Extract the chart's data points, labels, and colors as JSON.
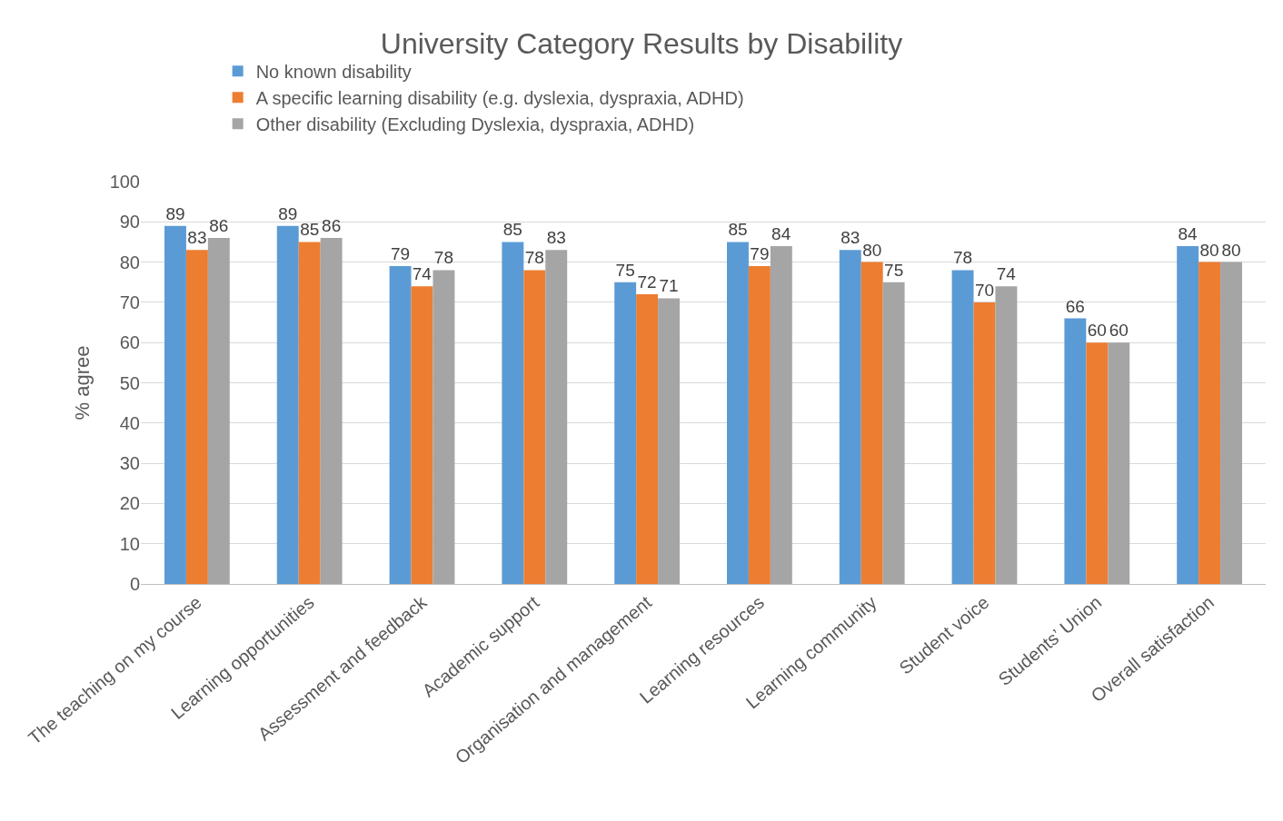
{
  "chart_data": {
    "type": "bar",
    "title": "University Category Results by Disability",
    "ylabel": "% agree",
    "categories": [
      "The teaching on my course",
      "Learning opportunities",
      "Assessment and feedback",
      "Academic support",
      "Organisation and management",
      "Learning resources",
      "Learning community",
      "Student voice",
      "Students’ Union",
      "Overall satisfaction"
    ],
    "series": [
      {
        "name": "No known disability",
        "color": "#5b9bd5",
        "values": [
          89,
          89,
          79,
          85,
          75,
          85,
          83,
          78,
          66,
          84
        ]
      },
      {
        "name": "A specific learning disability (e.g. dyslexia, dyspraxia, ADHD)",
        "color": "#ed7d31",
        "values": [
          83,
          85,
          74,
          78,
          72,
          79,
          80,
          70,
          60,
          80
        ]
      },
      {
        "name": "Other disability (Excluding Dyslexia, dyspraxia, ADHD)",
        "color": "#a5a5a5",
        "values": [
          86,
          86,
          78,
          83,
          71,
          84,
          75,
          74,
          60,
          80
        ]
      }
    ],
    "ylim": [
      0,
      100
    ],
    "yticks": [
      0,
      10,
      20,
      30,
      40,
      50,
      60,
      70,
      80,
      90,
      100
    ],
    "grid": "y",
    "legend": "top",
    "data_labels": true
  }
}
